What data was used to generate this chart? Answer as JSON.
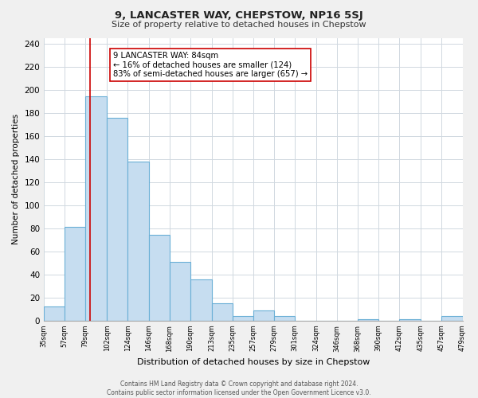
{
  "title": "9, LANCASTER WAY, CHEPSTOW, NP16 5SJ",
  "subtitle": "Size of property relative to detached houses in Chepstow",
  "xlabel": "Distribution of detached houses by size in Chepstow",
  "ylabel": "Number of detached properties",
  "bar_edges": [
    35,
    57,
    79,
    102,
    124,
    146,
    168,
    190,
    213,
    235,
    257,
    279,
    301,
    324,
    346,
    368,
    390,
    412,
    435,
    457,
    479
  ],
  "bar_heights": [
    12,
    81,
    194,
    176,
    138,
    74,
    51,
    36,
    15,
    4,
    9,
    4,
    0,
    0,
    0,
    1,
    0,
    1,
    0,
    4
  ],
  "bar_color": "#c6ddf0",
  "bar_edgecolor": "#6aafd6",
  "property_line_x": 84,
  "property_line_color": "#cc0000",
  "annotation_text": "9 LANCASTER WAY: 84sqm\n← 16% of detached houses are smaller (124)\n83% of semi-detached houses are larger (657) →",
  "ylim": [
    0,
    245
  ],
  "yticks": [
    0,
    20,
    40,
    60,
    80,
    100,
    120,
    140,
    160,
    180,
    200,
    220,
    240
  ],
  "tick_labels": [
    "35sqm",
    "57sqm",
    "79sqm",
    "102sqm",
    "124sqm",
    "146sqm",
    "168sqm",
    "190sqm",
    "213sqm",
    "235sqm",
    "257sqm",
    "279sqm",
    "301sqm",
    "324sqm",
    "346sqm",
    "368sqm",
    "390sqm",
    "412sqm",
    "435sqm",
    "457sqm",
    "479sqm"
  ],
  "footer_text": "Contains HM Land Registry data © Crown copyright and database right 2024.\nContains public sector information licensed under the Open Government Licence v3.0.",
  "background_color": "#f0f0f0",
  "plot_background": "#ffffff",
  "grid_color": "#d0d8e0"
}
